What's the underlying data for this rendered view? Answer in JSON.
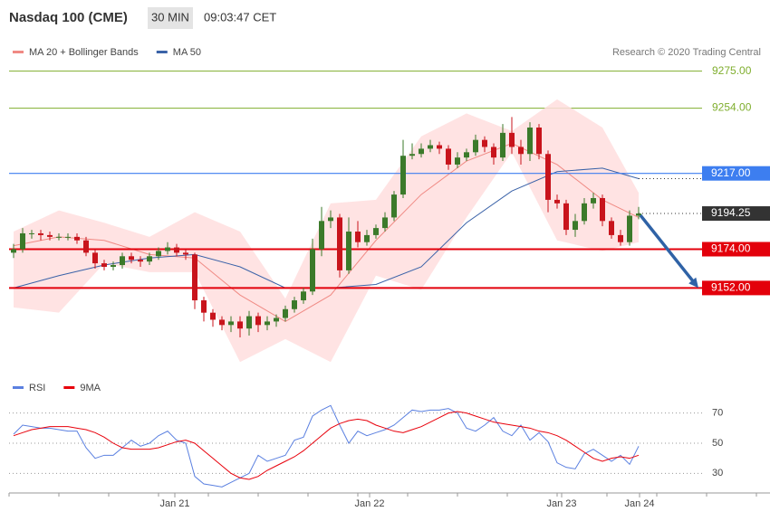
{
  "chart_data": [
    {
      "type": "candlestick",
      "title": "Nasdaq 100 (CME)",
      "interval": "30 MIN",
      "time": "09:03:47 CET",
      "credit": "Research © 2020 Trading Central",
      "up_color": "#3b7a2a",
      "down_color": "#c8141c",
      "xlim": [
        -0.5,
        76
      ],
      "ylim": [
        9105,
        9282
      ],
      "yticks": [
        {
          "value": 9275,
          "label": "9275.00"
        },
        {
          "value": 9254,
          "label": "9254.00"
        }
      ],
      "tick_color": "#7fae2e",
      "levels": [
        {
          "value": 9217,
          "label": "9217.00",
          "color": "#3d7ef0"
        },
        {
          "value": 9174,
          "label": "9174.00",
          "color": "#e3000b"
        },
        {
          "value": 9152,
          "label": "9152.00",
          "color": "#e3000b"
        }
      ],
      "last_price": {
        "value": 9194.25,
        "label": "9194.25",
        "color": "#333333"
      },
      "arrow_color": "#2f62a6",
      "open": [
        9172,
        9174,
        9183,
        9183,
        9182,
        9181,
        9181,
        9181,
        9179,
        9172,
        9166,
        9164,
        9165,
        9170,
        9168,
        9167,
        9170,
        9173,
        9175,
        9172,
        9171,
        9145,
        9138,
        9134,
        9131,
        9133,
        9129,
        9136,
        9131,
        9133,
        9135,
        9140,
        9145,
        9150,
        9174,
        9190,
        9192,
        9162,
        9184,
        9178,
        9182,
        9186,
        9192,
        9205,
        9227,
        9228,
        9231,
        9233,
        9231,
        9222,
        9226,
        9229,
        9236,
        9232,
        9226,
        9240,
        9232,
        9228,
        9243,
        9228,
        9202,
        9200,
        9185,
        9190,
        9200,
        9203,
        9190,
        9182,
        9178,
        9193
      ],
      "high": [
        9177,
        9186,
        9185,
        9185,
        9184,
        9183,
        9183,
        9183,
        9181,
        9174,
        9168,
        9167,
        9172,
        9172,
        9170,
        9172,
        9175,
        9178,
        9177,
        9174,
        9172,
        9147,
        9140,
        9136,
        9136,
        9136,
        9139,
        9138,
        9136,
        9137,
        9142,
        9147,
        9152,
        9180,
        9198,
        9196,
        9194,
        9192,
        9190,
        9185,
        9188,
        9195,
        9207,
        9236,
        9234,
        9234,
        9236,
        9235,
        9233,
        9229,
        9231,
        9239,
        9238,
        9234,
        9245,
        9249,
        9236,
        9246,
        9245,
        9230,
        9205,
        9202,
        9194,
        9203,
        9206,
        9205,
        9192,
        9185,
        9196,
        9198
      ],
      "low": [
        9169,
        9172,
        9180,
        9179,
        9179,
        9179,
        9179,
        9177,
        9170,
        9163,
        9162,
        9162,
        9163,
        9166,
        9164,
        9165,
        9168,
        9171,
        9170,
        9168,
        9140,
        9133,
        9130,
        9128,
        9127,
        9124,
        9125,
        9127,
        9128,
        9130,
        9133,
        9138,
        9143,
        9148,
        9170,
        9186,
        9158,
        9160,
        9175,
        9176,
        9180,
        9184,
        9190,
        9203,
        9225,
        9226,
        9229,
        9228,
        9219,
        9220,
        9224,
        9227,
        9229,
        9222,
        9224,
        9228,
        9222,
        9224,
        9225,
        9195,
        9197,
        9182,
        9181,
        9188,
        9197,
        9187,
        9180,
        9176,
        9176,
        9191
      ],
      "close": [
        9174,
        9183,
        9183,
        9182,
        9181,
        9181,
        9181,
        9179,
        9172,
        9166,
        9164,
        9165,
        9170,
        9168,
        9167,
        9170,
        9173,
        9175,
        9172,
        9171,
        9145,
        9138,
        9134,
        9131,
        9133,
        9129,
        9136,
        9131,
        9133,
        9135,
        9140,
        9145,
        9150,
        9174,
        9190,
        9192,
        9162,
        9184,
        9178,
        9182,
        9186,
        9192,
        9205,
        9227,
        9228,
        9231,
        9233,
        9231,
        9222,
        9226,
        9229,
        9236,
        9232,
        9226,
        9240,
        9232,
        9228,
        9243,
        9228,
        9202,
        9200,
        9185,
        9190,
        9200,
        9203,
        9190,
        9182,
        9178,
        9193,
        9194.25
      ],
      "overlays": [
        {
          "name": "MA 20 + Bollinger Bands",
          "color": "#f08a84",
          "band_color": "#ffdede",
          "x": [
            0,
            5,
            10,
            15,
            20,
            25,
            30,
            35,
            40,
            45,
            50,
            55,
            60,
            65,
            69
          ],
          "values": [
            9176,
            9181,
            9179,
            9171,
            9169,
            9148,
            9133,
            9148,
            9179,
            9205,
            9224,
            9234,
            9222,
            9202,
            9192
          ],
          "upper": [
            9184,
            9196,
            9189,
            9181,
            9195,
            9184,
            9146,
            9200,
            9202,
            9238,
            9251,
            9241,
            9259,
            9243,
            9206
          ],
          "lower": [
            9141,
            9138,
            9166,
            9161,
            9161,
            9110,
            9123,
            9110,
            9159,
            9151,
            9192,
            9229,
            9179,
            9173,
            9178
          ]
        },
        {
          "name": "MA 50",
          "color": "#3a62a8",
          "x": [
            0,
            5,
            10,
            15,
            20,
            25,
            30,
            35,
            40,
            45,
            50,
            55,
            60,
            65,
            69
          ],
          "values": [
            9152,
            9159,
            9165,
            9169,
            9171,
            9164,
            9152,
            9152,
            9154,
            9164,
            9189,
            9207,
            9218,
            9220,
            9214
          ]
        }
      ]
    },
    {
      "type": "line",
      "xlim": [
        -0.5,
        76
      ],
      "ylim": [
        17,
        92
      ],
      "yticks": [
        30,
        50,
        70
      ],
      "xticks": [
        {
          "value": 17.8,
          "label": "Jan 21"
        },
        {
          "value": 39.3,
          "label": "Jan 22"
        },
        {
          "value": 60.5,
          "label": "Jan 23"
        },
        {
          "value": 69.1,
          "label": "Jan 24"
        }
      ],
      "series": [
        {
          "name": "RSI",
          "color": "#5b80e0",
          "values": [
            56,
            62,
            61,
            60,
            60,
            59,
            58,
            58,
            47,
            40,
            42,
            42,
            47,
            52,
            48,
            50,
            55,
            58,
            52,
            50,
            28,
            23,
            22,
            21,
            24,
            27,
            30,
            42,
            38,
            40,
            42,
            52,
            54,
            68,
            72,
            75,
            62,
            50,
            58,
            55,
            57,
            59,
            62,
            67,
            72,
            71,
            72,
            72,
            73,
            70,
            60,
            58,
            62,
            67,
            58,
            55,
            62,
            52,
            57,
            51,
            37,
            34,
            33,
            43,
            46,
            42,
            38,
            42,
            36,
            48
          ]
        },
        {
          "name": "9MA",
          "color": "#e8000b",
          "values": [
            55,
            57,
            59,
            60,
            61,
            61,
            61,
            60,
            59,
            57,
            54,
            50,
            47,
            46,
            46,
            46,
            47,
            49,
            51,
            52,
            50,
            45,
            40,
            35,
            30,
            27,
            26,
            28,
            32,
            35,
            38,
            41,
            45,
            50,
            55,
            60,
            63,
            65,
            66,
            65,
            62,
            60,
            58,
            57,
            59,
            61,
            64,
            67,
            70,
            71,
            70,
            68,
            66,
            64,
            63,
            62,
            61,
            60,
            58,
            57,
            55,
            52,
            48,
            44,
            40,
            38,
            40,
            41,
            40,
            42
          ]
        }
      ]
    }
  ]
}
